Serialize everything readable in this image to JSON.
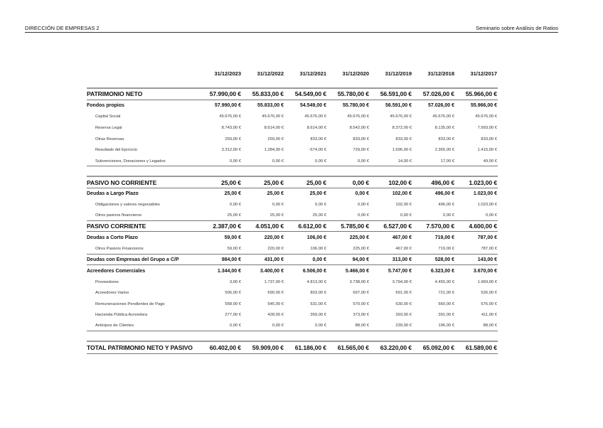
{
  "header": {
    "left": "DIRECCIÓN DE EMPRESAS 2",
    "right": "Seminario sobre Análisis de Ratios"
  },
  "dates": [
    "31/12/2023",
    "31/12/2022",
    "31/12/2021",
    "31/12/2020",
    "31/12/2019",
    "31/12/2018",
    "31/12/2017"
  ],
  "rows": [
    {
      "type": "major",
      "label": "PATRIMONIO NETO",
      "values": [
        "57.990,00 €",
        "55.833,00 €",
        "54.549,00 €",
        "55.780,00 €",
        "56.591,00 €",
        "57.026,00 €",
        "55.966,00 €"
      ]
    },
    {
      "type": "sub",
      "label": "Fondos propios",
      "values": [
        "57.990,00 €",
        "55.833,00 €",
        "54.549,00 €",
        "55.780,00 €",
        "56.591,00 €",
        "57.026,00 €",
        "55.966,00 €"
      ]
    },
    {
      "type": "item",
      "label": "Capital Social",
      "values": [
        "45.676,00 €",
        "45.676,00 €",
        "45.676,00 €",
        "45.676,00 €",
        "45.676,00 €",
        "45.676,00 €",
        "45.676,00 €"
      ]
    },
    {
      "type": "item",
      "label": "Reserva Legal",
      "values": [
        "8.743,00 €",
        "8.614,00 €",
        "8.614,00 €",
        "8.542,00 €",
        "8.372,00 €",
        "8.135,00 €",
        "7.993,00 €"
      ]
    },
    {
      "type": "item",
      "label": "Otras Reservas",
      "values": [
        "259,00 €",
        "259,00 €",
        "833,00 €",
        "833,00 €",
        "833,00 €",
        "833,00 €",
        "833,00 €"
      ]
    },
    {
      "type": "item",
      "label": "Resultado del Ejercicio",
      "values": [
        "3.312,00 €",
        "1.284,00 €",
        "-574,00 €",
        "729,00 €",
        "1.696,00 €",
        "2.365,00 €",
        "1.415,00 €"
      ]
    },
    {
      "type": "item",
      "label": "Subvenciones, Donaciones y Legados",
      "values": [
        "0,00 €",
        "0,00 €",
        "0,00 €",
        "0,00 €",
        "14,00 €",
        "17,00 €",
        "49,00 €"
      ]
    },
    {
      "type": "major",
      "label": "PASIVO NO CORRIENTE",
      "values": [
        "25,00 €",
        "25,00 €",
        "25,00 €",
        "0,00 €",
        "102,00 €",
        "496,00 €",
        "1.023,00 €"
      ]
    },
    {
      "type": "sub",
      "label": "Deudas a Largo Plazo",
      "values": [
        "25,00 €",
        "25,00 €",
        "25,00 €",
        "0,00 €",
        "102,00 €",
        "496,00 €",
        "1.023,00 €"
      ]
    },
    {
      "type": "item",
      "label": "Obligaciones y valores negociables",
      "values": [
        "0,00 €",
        "0,00 €",
        "0,00 €",
        "0,00 €",
        "102,00 €",
        "496,00 €",
        "1.023,00 €"
      ]
    },
    {
      "type": "item",
      "label": "Otros pasivos financieros",
      "values": [
        "25,00 €",
        "25,00 €",
        "25,00 €",
        "0,00 €",
        "0,00 €",
        "0,00 €",
        "0,00 €"
      ]
    },
    {
      "type": "major",
      "label": "PASIVO CORRIENTE",
      "values": [
        "2.387,00 €",
        "4.051,00 €",
        "6.612,00 €",
        "5.785,00 €",
        "6.527,00 €",
        "7.570,00 €",
        "4.600,00 €"
      ]
    },
    {
      "type": "sub",
      "label": "Deudas a Corto Plazo",
      "values": [
        "59,00 €",
        "220,00 €",
        "106,00 €",
        "225,00 €",
        "467,00 €",
        "719,00 €",
        "787,00 €"
      ]
    },
    {
      "type": "item",
      "label": "Otros Pasivos Financieros",
      "values": [
        "59,00 €",
        "220,00 €",
        "106,00 €",
        "225,00 €",
        "467,00 €",
        "719,00 €",
        "787,00 €"
      ]
    },
    {
      "type": "sub",
      "label": "Deudas con Empresas del Grupo a C/P",
      "values": [
        "984,00 €",
        "431,00 €",
        "0,00 €",
        "94,00 €",
        "313,00 €",
        "528,00 €",
        "143,00 €"
      ]
    },
    {
      "type": "sub",
      "label": "Acreedores Comerciales",
      "values": [
        "1.344,00 €",
        "3.400,00 €",
        "6.506,00 €",
        "5.466,00 €",
        "5.747,00 €",
        "6.323,00 €",
        "3.670,00 €"
      ]
    },
    {
      "type": "item",
      "label": "Proveedores",
      "values": [
        "3,00 €",
        "1.737,00 €",
        "4.813,00 €",
        "3.738,00 €",
        "3.794,00 €",
        "4.455,00 €",
        "1.969,00 €"
      ]
    },
    {
      "type": "item",
      "label": "Acreedores Varios",
      "values": [
        "506,00 €",
        "690,00 €",
        "803,00 €",
        "697,00 €",
        "691,00 €",
        "721,00 €",
        "526,00 €"
      ]
    },
    {
      "type": "item",
      "label": "Remuneraciones Pendientes de Pago",
      "values": [
        "558,00 €",
        "545,00 €",
        "531,00 €",
        "570,00 €",
        "630,00 €",
        "560,00 €",
        "676,00 €"
      ]
    },
    {
      "type": "item",
      "label": "Hacienda Pública Acreedora",
      "values": [
        "277,00 €",
        "428,00 €",
        "359,00 €",
        "373,00 €",
        "393,00 €",
        "391,00 €",
        "411,00 €"
      ]
    },
    {
      "type": "item",
      "label": "Anticipos de Clientes",
      "values": [
        "0,00 €",
        "0,00 €",
        "0,00 €",
        "88,00 €",
        "239,00 €",
        "196,00 €",
        "88,00 €"
      ]
    },
    {
      "type": "major",
      "label": "TOTAL PATRIMONIO NETO Y PASIVO",
      "values": [
        "60.402,00 €",
        "59.909,00 €",
        "61.186,00 €",
        "61.565,00 €",
        "63.220,00 €",
        "65.092,00 €",
        "61.589,00 €"
      ]
    }
  ]
}
